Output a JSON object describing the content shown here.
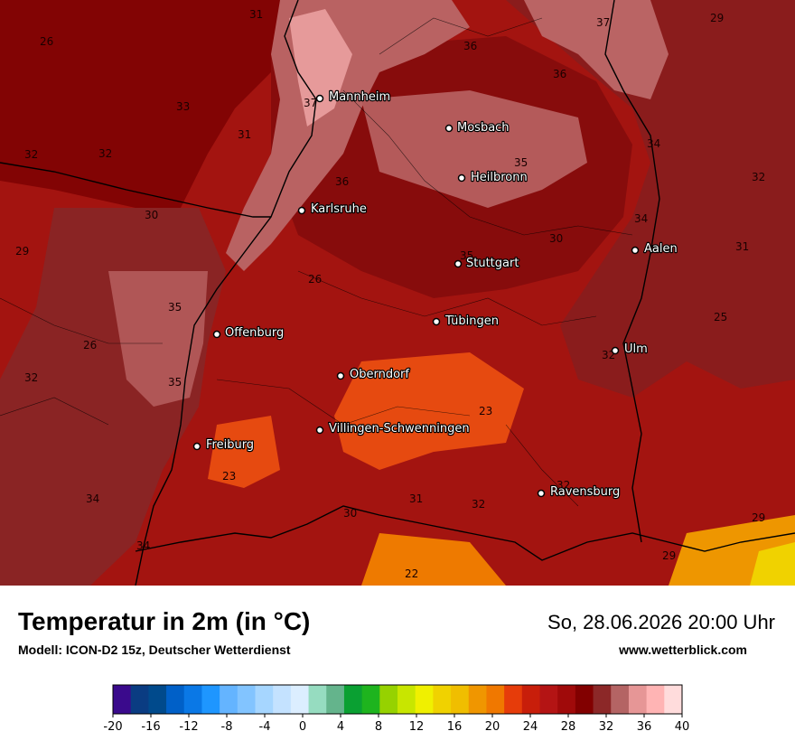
{
  "footer": {
    "title": "Temperatur in 2m (in °C)",
    "subtitle": "Modell: ICON-D2 15z, Deutscher Wetterdienst",
    "datetime": "So, 28.06.2026 20:00 Uhr",
    "website": "www.wetterblick.com"
  },
  "cities": [
    {
      "name": "Mannheim"
    },
    {
      "name": "Mosbach"
    },
    {
      "name": "Heilbronn"
    },
    {
      "name": "Karlsruhe"
    },
    {
      "name": "Aalen"
    },
    {
      "name": "Stuttgart"
    },
    {
      "name": "Tübingen"
    },
    {
      "name": "Offenburg"
    },
    {
      "name": "Ulm"
    },
    {
      "name": "Oberndorf"
    },
    {
      "name": "Villingen-Schwenningen"
    },
    {
      "name": "Freiburg"
    },
    {
      "name": "Ravensburg"
    }
  ],
  "isotherm_labels": [
    "31",
    "37",
    "26",
    "36",
    "36",
    "29",
    "33",
    "37",
    "31",
    "32",
    "32",
    "34",
    "36",
    "35",
    "32",
    "30",
    "34",
    "29",
    "30",
    "31",
    "35",
    "26",
    "35",
    "25",
    "26",
    "32",
    "35",
    "23",
    "23",
    "34",
    "31",
    "32",
    "30",
    "34",
    "22",
    "29",
    "29",
    "32",
    "32"
  ],
  "legend": {
    "ticks": [
      "-20",
      "-16",
      "-12",
      "-8",
      "-4",
      "0",
      "4",
      "8",
      "12",
      "16",
      "20",
      "24",
      "28",
      "32",
      "36",
      "40"
    ],
    "colors": [
      "#3a0a8c",
      "#0a3c82",
      "#004a8c",
      "#0060c8",
      "#0a78e6",
      "#1e96ff",
      "#64b4ff",
      "#82c4ff",
      "#a6d6ff",
      "#c4e2ff",
      "#dceeff",
      "#96dcc0",
      "#64b48c",
      "#0aa032",
      "#1eb41e",
      "#96d200",
      "#c8e600",
      "#f0f000",
      "#f0d200",
      "#f0be00",
      "#f09600",
      "#f07800",
      "#e63c0a",
      "#c81e0a",
      "#b41414",
      "#a00a0a",
      "#820000",
      "#8c2828",
      "#b46464",
      "#e69696",
      "#ffb4b4",
      "#ffdcdc"
    ]
  }
}
